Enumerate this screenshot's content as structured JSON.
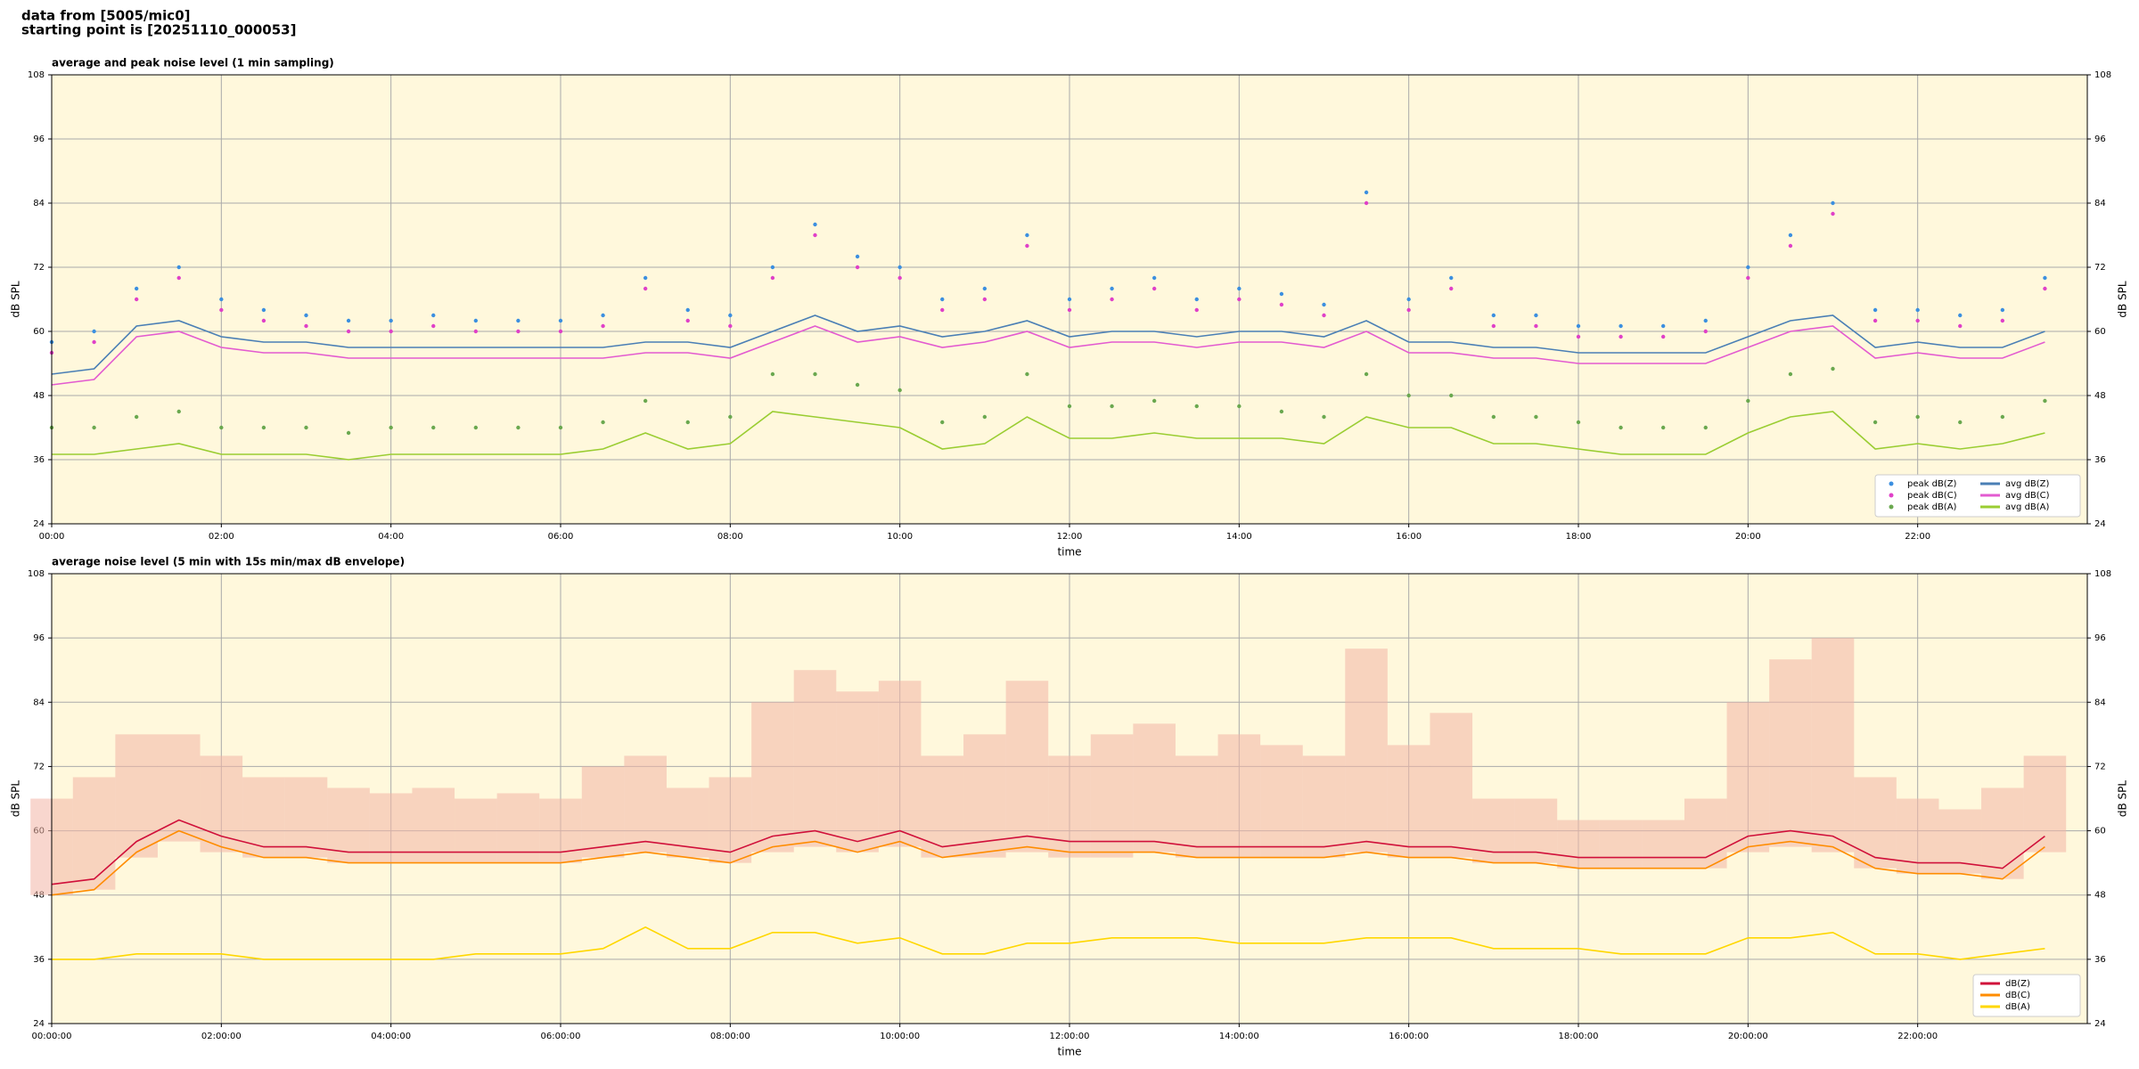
{
  "header": [
    "data from [5005/mic0]",
    "starting point is [20251110_000053]"
  ],
  "chart_data": [
    {
      "type": "line",
      "title": "average and peak noise level (1 min sampling)",
      "xlabel": "time",
      "ylabel": "dB SPL",
      "x": [
        0,
        0.5,
        1,
        1.5,
        2,
        2.5,
        3,
        3.5,
        4,
        4.5,
        5,
        5.5,
        6,
        6.5,
        7,
        7.5,
        8,
        8.5,
        9,
        9.5,
        10,
        10.5,
        11,
        11.5,
        12,
        12.5,
        13,
        13.5,
        14,
        14.5,
        15,
        15.5,
        16,
        16.5,
        17,
        17.5,
        18,
        18.5,
        19,
        19.5,
        20,
        20.5,
        21,
        21.5,
        22,
        22.5,
        23,
        23.5
      ],
      "xlim": [
        0,
        24
      ],
      "ylim": [
        24,
        108
      ],
      "yticks": [
        24,
        36,
        48,
        60,
        72,
        84,
        96,
        108
      ],
      "xticks": [
        {
          "value": 0,
          "label": "00:00"
        },
        {
          "value": 2,
          "label": "02:00"
        },
        {
          "value": 4,
          "label": "04:00"
        },
        {
          "value": 6,
          "label": "06:00"
        },
        {
          "value": 8,
          "label": "08:00"
        },
        {
          "value": 10,
          "label": "10:00"
        },
        {
          "value": 12,
          "label": "12:00"
        },
        {
          "value": 14,
          "label": "14:00"
        },
        {
          "value": 16,
          "label": "16:00"
        },
        {
          "value": 18,
          "label": "18:00"
        },
        {
          "value": 20,
          "label": "20:00"
        },
        {
          "value": 22,
          "label": "22:00"
        }
      ],
      "grid": true,
      "legend": "lower right",
      "series": [
        {
          "name": "peak dB(Z)",
          "kind": "markers",
          "color": "#3b8fe0",
          "values": [
            58,
            60,
            68,
            72,
            66,
            64,
            63,
            62,
            62,
            63,
            62,
            62,
            62,
            63,
            70,
            64,
            63,
            72,
            80,
            74,
            72,
            66,
            68,
            78,
            66,
            68,
            70,
            66,
            68,
            67,
            65,
            86,
            66,
            70,
            63,
            63,
            61,
            61,
            61,
            62,
            72,
            78,
            84,
            64,
            64,
            63,
            64,
            70
          ]
        },
        {
          "name": "peak dB(C)",
          "kind": "markers",
          "color": "#e040c8",
          "values": [
            56,
            58,
            66,
            70,
            64,
            62,
            61,
            60,
            60,
            61,
            60,
            60,
            60,
            61,
            68,
            62,
            61,
            70,
            78,
            72,
            70,
            64,
            66,
            76,
            64,
            66,
            68,
            64,
            66,
            65,
            63,
            84,
            64,
            68,
            61,
            61,
            59,
            59,
            59,
            60,
            70,
            76,
            82,
            62,
            62,
            61,
            62,
            68
          ]
        },
        {
          "name": "peak dB(A)",
          "kind": "markers",
          "color": "#6aa84f",
          "values": [
            42,
            42,
            44,
            45,
            42,
            42,
            42,
            41,
            42,
            42,
            42,
            42,
            42,
            43,
            47,
            43,
            44,
            52,
            52,
            50,
            49,
            43,
            44,
            52,
            46,
            46,
            47,
            46,
            46,
            45,
            44,
            52,
            48,
            48,
            44,
            44,
            43,
            42,
            42,
            42,
            47,
            52,
            53,
            43,
            44,
            43,
            44,
            47
          ]
        },
        {
          "name": "avg dB(Z)",
          "kind": "line",
          "color": "#4a7fb5",
          "values": [
            52,
            53,
            61,
            62,
            59,
            58,
            58,
            57,
            57,
            57,
            57,
            57,
            57,
            57,
            58,
            58,
            57,
            60,
            63,
            60,
            61,
            59,
            60,
            62,
            59,
            60,
            60,
            59,
            60,
            60,
            59,
            62,
            58,
            58,
            57,
            57,
            56,
            56,
            56,
            56,
            59,
            62,
            63,
            57,
            58,
            57,
            57,
            60
          ]
        },
        {
          "name": "avg dB(C)",
          "kind": "line",
          "color": "#e35bd0",
          "values": [
            50,
            51,
            59,
            60,
            57,
            56,
            56,
            55,
            55,
            55,
            55,
            55,
            55,
            55,
            56,
            56,
            55,
            58,
            61,
            58,
            59,
            57,
            58,
            60,
            57,
            58,
            58,
            57,
            58,
            58,
            57,
            60,
            56,
            56,
            55,
            55,
            54,
            54,
            54,
            54,
            57,
            60,
            61,
            55,
            56,
            55,
            55,
            58
          ]
        },
        {
          "name": "avg dB(A)",
          "kind": "line",
          "color": "#9acd32",
          "values": [
            37,
            37,
            38,
            39,
            37,
            37,
            37,
            36,
            37,
            37,
            37,
            37,
            37,
            38,
            41,
            38,
            39,
            45,
            44,
            43,
            42,
            38,
            39,
            44,
            40,
            40,
            41,
            40,
            40,
            40,
            39,
            44,
            42,
            42,
            39,
            39,
            38,
            37,
            37,
            37,
            41,
            44,
            45,
            38,
            39,
            38,
            39,
            41
          ]
        }
      ]
    },
    {
      "type": "line",
      "title": "average noise level (5 min with 15s min/max dB envelope)",
      "xlabel": "time",
      "ylabel": "dB SPL",
      "x": [
        0,
        0.5,
        1,
        1.5,
        2,
        2.5,
        3,
        3.5,
        4,
        4.5,
        5,
        5.5,
        6,
        6.5,
        7,
        7.5,
        8,
        8.5,
        9,
        9.5,
        10,
        10.5,
        11,
        11.5,
        12,
        12.5,
        13,
        13.5,
        14,
        14.5,
        15,
        15.5,
        16,
        16.5,
        17,
        17.5,
        18,
        18.5,
        19,
        19.5,
        20,
        20.5,
        21,
        21.5,
        22,
        22.5,
        23,
        23.5
      ],
      "xlim": [
        0,
        24
      ],
      "ylim": [
        24,
        108
      ],
      "yticks": [
        24,
        36,
        48,
        60,
        72,
        84,
        96,
        108
      ],
      "xticks": [
        {
          "value": 0,
          "label": "00:00:00"
        },
        {
          "value": 2,
          "label": "02:00:00"
        },
        {
          "value": 4,
          "label": "04:00:00"
        },
        {
          "value": 6,
          "label": "06:00:00"
        },
        {
          "value": 8,
          "label": "08:00:00"
        },
        {
          "value": 10,
          "label": "10:00:00"
        },
        {
          "value": 12,
          "label": "12:00:00"
        },
        {
          "value": 14,
          "label": "14:00:00"
        },
        {
          "value": 16,
          "label": "16:00:00"
        },
        {
          "value": 18,
          "label": "18:00:00"
        },
        {
          "value": 20,
          "label": "20:00:00"
        },
        {
          "value": 22,
          "label": "22:00:00"
        }
      ],
      "grid": true,
      "legend": "lower right",
      "envelope": {
        "color": "#f2b4a6",
        "low": [
          48,
          49,
          55,
          58,
          56,
          55,
          55,
          54,
          54,
          54,
          54,
          54,
          54,
          55,
          56,
          55,
          54,
          56,
          57,
          56,
          57,
          55,
          55,
          56,
          55,
          55,
          56,
          55,
          55,
          55,
          55,
          56,
          55,
          55,
          54,
          54,
          53,
          53,
          53,
          53,
          56,
          57,
          56,
          53,
          52,
          52,
          51,
          56
        ],
        "high": [
          66,
          70,
          78,
          78,
          74,
          70,
          70,
          68,
          67,
          68,
          66,
          67,
          66,
          72,
          74,
          68,
          70,
          84,
          90,
          86,
          88,
          74,
          78,
          88,
          74,
          78,
          80,
          74,
          78,
          76,
          74,
          94,
          76,
          82,
          66,
          66,
          62,
          62,
          62,
          66,
          84,
          92,
          96,
          70,
          66,
          64,
          68,
          74
        ]
      },
      "series": [
        {
          "name": "dB(Z)",
          "kind": "line",
          "color": "#d0103a",
          "values": [
            50,
            51,
            58,
            62,
            59,
            57,
            57,
            56,
            56,
            56,
            56,
            56,
            56,
            57,
            58,
            57,
            56,
            59,
            60,
            58,
            60,
            57,
            58,
            59,
            58,
            58,
            58,
            57,
            57,
            57,
            57,
            58,
            57,
            57,
            56,
            56,
            55,
            55,
            55,
            55,
            59,
            60,
            59,
            55,
            54,
            54,
            53,
            59
          ]
        },
        {
          "name": "dB(C)",
          "kind": "line",
          "color": "#ff8c00",
          "values": [
            48,
            49,
            56,
            60,
            57,
            55,
            55,
            54,
            54,
            54,
            54,
            54,
            54,
            55,
            56,
            55,
            54,
            57,
            58,
            56,
            58,
            55,
            56,
            57,
            56,
            56,
            56,
            55,
            55,
            55,
            55,
            56,
            55,
            55,
            54,
            54,
            53,
            53,
            53,
            53,
            57,
            58,
            57,
            53,
            52,
            52,
            51,
            57
          ]
        },
        {
          "name": "dB(A)",
          "kind": "line",
          "color": "#ffd700",
          "values": [
            36,
            36,
            37,
            37,
            37,
            36,
            36,
            36,
            36,
            36,
            37,
            37,
            37,
            38,
            42,
            38,
            38,
            41,
            41,
            39,
            40,
            37,
            37,
            39,
            39,
            40,
            40,
            40,
            39,
            39,
            39,
            40,
            40,
            40,
            38,
            38,
            38,
            37,
            37,
            37,
            40,
            40,
            41,
            37,
            37,
            36,
            37,
            38
          ]
        }
      ]
    }
  ]
}
